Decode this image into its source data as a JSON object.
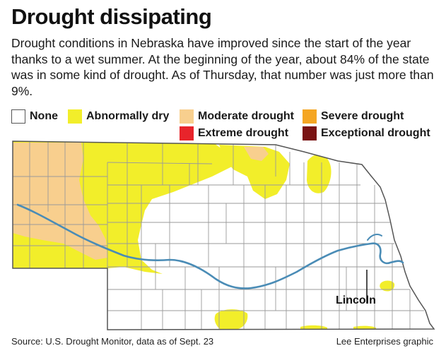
{
  "header": {
    "title": "Drought dissipating",
    "description": "Drought conditions in Nebraska have improved since the start of the year thanks to a wet summer. At the beginning of the year, about 84% of the state was in some kind of drought. As of Thursday, that number was just more than 9%."
  },
  "legend": [
    {
      "label": "None",
      "color": "#ffffff"
    },
    {
      "label": "Abnormally dry",
      "color": "#f2ee2a"
    },
    {
      "label": "Moderate drought",
      "color": "#f8cf8e"
    },
    {
      "label": "Severe drought",
      "color": "#f5a623"
    },
    {
      "label": "Extreme drought",
      "color": "#e8242b"
    },
    {
      "label": "Exceptional drought",
      "color": "#7a1313"
    }
  ],
  "map": {
    "city_label": "Lincoln",
    "river_color": "#4a8cb6"
  },
  "footer": {
    "source": "Source: U.S. Drought Monitor, data as of Sept. 23",
    "credit": "Lee Enterprises graphic"
  }
}
